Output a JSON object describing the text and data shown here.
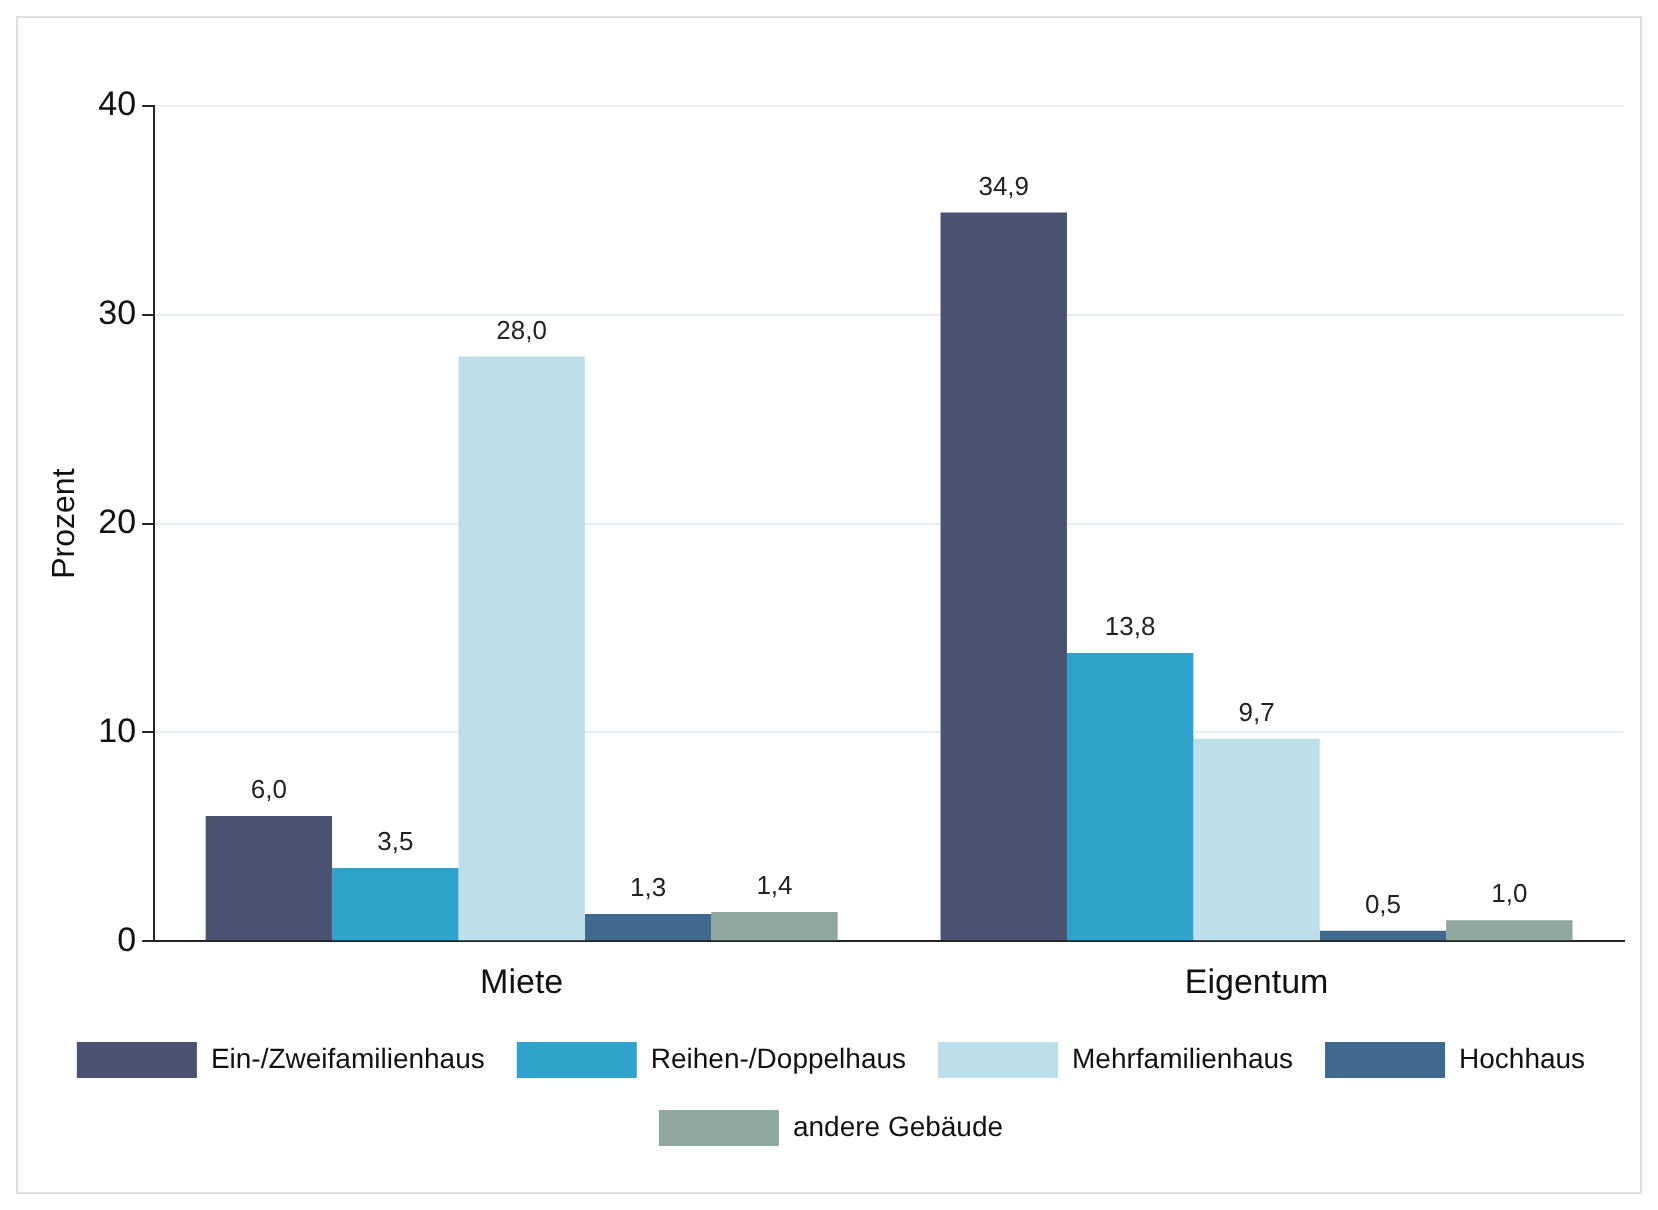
{
  "chart_data": {
    "type": "bar",
    "ylabel": "Prozent",
    "categories": [
      "Miete",
      "Eigentum"
    ],
    "series": [
      {
        "name": "Ein-/Zweifamilienhaus",
        "color": "#4a5272",
        "values": [
          6.0,
          34.9
        ],
        "value_labels": [
          "6,0",
          "34,9"
        ]
      },
      {
        "name": "Reihen-/Doppelhaus",
        "color": "#2fa3c9",
        "values": [
          3.5,
          13.8
        ],
        "value_labels": [
          "3,5",
          "13,8"
        ]
      },
      {
        "name": "Mehrfamilienhaus",
        "color": "#bcdfe9",
        "values": [
          28.0,
          9.7
        ],
        "value_labels": [
          "28,0",
          "9,7"
        ]
      },
      {
        "name": "Hochhaus",
        "color": "#3f6a8e",
        "values": [
          1.3,
          0.5
        ],
        "value_labels": [
          "1,3",
          "0,5"
        ]
      },
      {
        "name": "andere Gebäude",
        "color": "#8fa79c",
        "values": [
          1.4,
          1.0
        ],
        "value_labels": [
          "1,4",
          "1,0"
        ]
      }
    ],
    "ylim": [
      0,
      40
    ],
    "yticks": [
      0,
      10,
      20,
      30,
      40
    ],
    "grid": "y",
    "legend": "bottom"
  }
}
